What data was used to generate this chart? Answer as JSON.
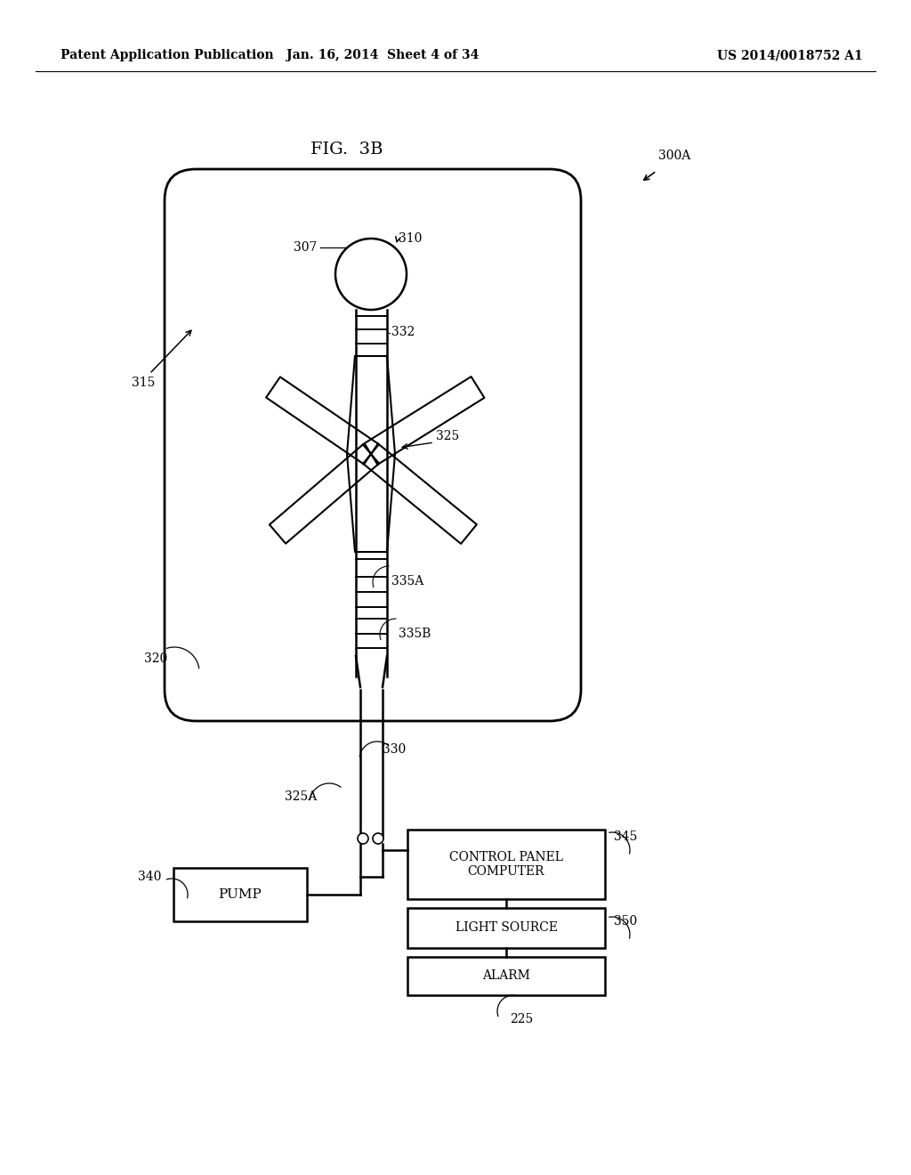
{
  "bg_color": "#ffffff",
  "header_left": "Patent Application Publication",
  "header_mid": "Jan. 16, 2014  Sheet 4 of 34",
  "header_right": "US 2014/0018752 A1",
  "fig_label": "FIG.  3B"
}
